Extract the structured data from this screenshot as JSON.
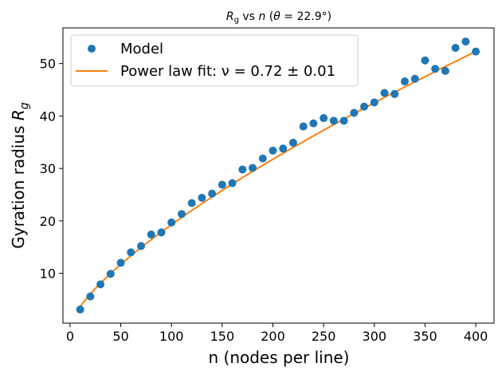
{
  "chart_data": {
    "type": "scatter",
    "title_parts": {
      "var": "R",
      "sub": "g",
      "middle": " vs ",
      "nvar": "n",
      "open": " (",
      "theta": "θ",
      "value": " = 22.9°)"
    },
    "xlabel": "n (nodes per line)",
    "ylabel_parts": {
      "text": "Gyration radius ",
      "var": "R",
      "sub": "g"
    },
    "xlim": [
      -7,
      418
    ],
    "ylim": [
      0.5,
      56.8
    ],
    "xticks": [
      0,
      50,
      100,
      150,
      200,
      250,
      300,
      350,
      400
    ],
    "yticks": [
      10,
      20,
      30,
      40,
      50
    ],
    "colors": {
      "model": "#1f77b4",
      "fit": "#ff7f0e"
    },
    "legend": {
      "position": "top-left",
      "model_label": "Model",
      "fit_label": "Power law fit: ν = 0.72 ± 0.01"
    },
    "series": [
      {
        "name": "Model",
        "kind": "scatter",
        "x": [
          10,
          20,
          30,
          40,
          50,
          60,
          70,
          80,
          90,
          100,
          110,
          120,
          130,
          140,
          150,
          160,
          170,
          180,
          190,
          200,
          210,
          220,
          230,
          240,
          250,
          260,
          270,
          280,
          290,
          300,
          310,
          320,
          330,
          340,
          350,
          360,
          370,
          380,
          390,
          400
        ],
        "y": [
          3.1,
          5.6,
          7.9,
          9.9,
          12.0,
          14.0,
          15.2,
          17.4,
          17.8,
          19.7,
          21.3,
          23.4,
          24.4,
          25.2,
          26.9,
          27.2,
          29.8,
          30.1,
          31.9,
          33.4,
          33.8,
          34.9,
          38.0,
          38.6,
          39.6,
          39.1,
          39.1,
          40.6,
          41.8,
          42.6,
          44.4,
          44.2,
          46.6,
          47.1,
          50.6,
          49.0,
          48.6,
          53.0,
          54.2,
          52.3
        ]
      },
      {
        "name": "Power law fit",
        "kind": "line",
        "a": 0.7,
        "nu": 0.72,
        "x_start": 10,
        "x_end": 400
      }
    ]
  }
}
